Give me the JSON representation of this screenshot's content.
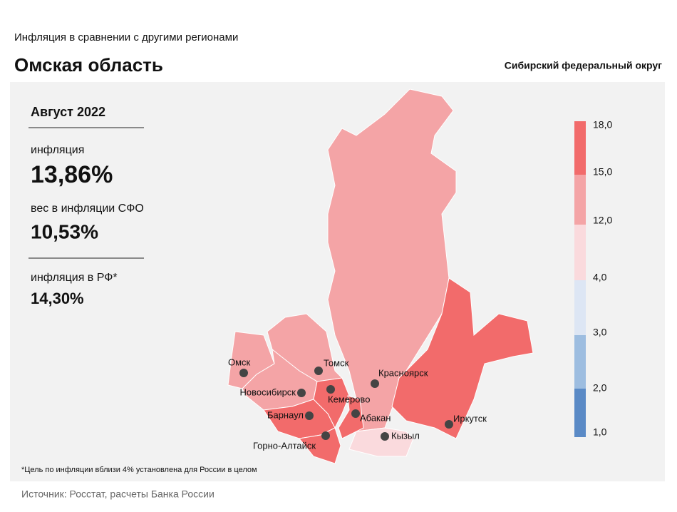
{
  "header": {
    "subtitle": "Инфляция  в сравнении  с другими  регионами",
    "title": "Омская область",
    "district": "Сибирский федеральный округ"
  },
  "panel": {
    "period": "Август 2022",
    "items": [
      {
        "label": "инфляция",
        "value": "13,86%"
      },
      {
        "label": "вес в инфляции  СФО",
        "value": "10,53%"
      },
      {
        "label": "инфляция  в РФ*",
        "value": "14,30%"
      }
    ]
  },
  "legend": {
    "ticks": [
      "18,0",
      "15,0",
      "12,0",
      "4,0",
      "3,0",
      "2,0",
      "1,0"
    ]
  },
  "map": {
    "cities": [
      "Омск",
      "Томск",
      "Новосибирск",
      "Красноярск",
      "Кемерово",
      "Барнаул",
      "Абакан",
      "Иркутск",
      "Кызыл",
      "Горно-Алтайск"
    ]
  },
  "footnote": "*Цель по инфляции вблизи 4% установлена для России в целом",
  "source": "Источник: Росстат, расчеты Банка России"
}
